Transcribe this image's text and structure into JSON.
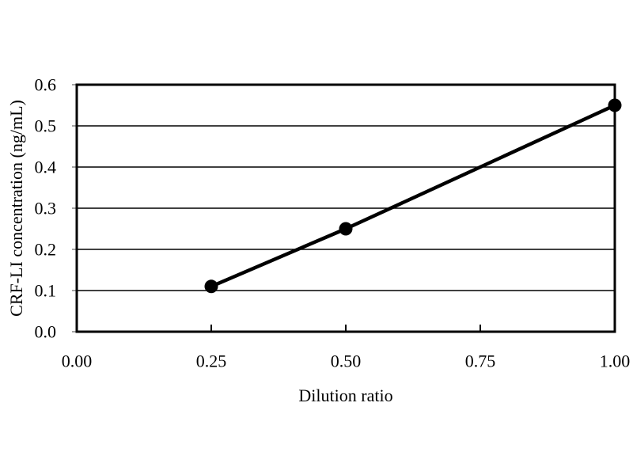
{
  "page": {
    "background": "#ffffff"
  },
  "chart_data": {
    "type": "line",
    "title": "",
    "xlabel": "Dilution ratio",
    "ylabel": "CRF-LI concentration (ng/mL)",
    "x": [
      0.25,
      0.5,
      1.0
    ],
    "y": [
      0.11,
      0.25,
      0.55
    ],
    "xlim": [
      0.0,
      1.0
    ],
    "ylim": [
      0.0,
      0.6
    ],
    "xticks": [
      0.0,
      0.25,
      0.5,
      0.75,
      1.0
    ],
    "xtick_labels": [
      "0.00",
      "0.25",
      "0.50",
      "0.75",
      "1.00"
    ],
    "yticks": [
      0.0,
      0.1,
      0.2,
      0.3,
      0.4,
      0.5,
      0.6
    ],
    "ytick_labels": [
      "0.0",
      "0.1",
      "0.2",
      "0.3",
      "0.4",
      "0.5",
      "0.6"
    ],
    "grid": "horizontal-only",
    "legend": "none",
    "plot_frame": true,
    "marker": "filled-circle",
    "line_color": "#000000",
    "marker_color": "#000000",
    "axis_color": "#000000",
    "plot_background": "#ffffff"
  }
}
